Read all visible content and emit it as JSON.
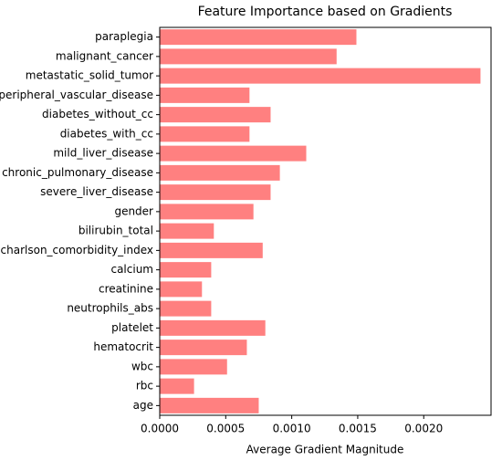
{
  "chart_data": {
    "type": "barh",
    "title": "Feature Importance based on Gradients",
    "x_label": "Average Gradient Magnitude",
    "categories": [
      "paraplegia",
      "malignant_cancer",
      "metastatic_solid_tumor",
      "peripheral_vascular_disease",
      "diabetes_without_cc",
      "diabetes_with_cc",
      "mild_liver_disease",
      "chronic_pulmonary_disease",
      "severe_liver_disease",
      "gender",
      "bilirubin_total",
      "charlson_comorbidity_index",
      "calcium",
      "creatinine",
      "neutrophils_abs",
      "platelet",
      "hematocrit",
      "wbc",
      "rbc",
      "age"
    ],
    "values": [
      0.00149,
      0.00134,
      0.00243,
      0.00068,
      0.00084,
      0.00068,
      0.00111,
      0.00091,
      0.00084,
      0.00071,
      0.00041,
      0.00078,
      0.00039,
      0.00032,
      0.00039,
      0.0008,
      0.00066,
      0.00051,
      0.00026,
      0.00075
    ],
    "color": "#ff8080",
    "xlim": [
      0,
      0.00251
    ],
    "xticks": [
      {
        "value": 0,
        "label": "0.0000"
      },
      {
        "value": 0.0005,
        "label": "0.0005"
      },
      {
        "value": 0.001,
        "label": "0.0010"
      },
      {
        "value": 0.0015,
        "label": "0.0015"
      },
      {
        "value": 0.002,
        "label": "0.0020"
      }
    ]
  }
}
